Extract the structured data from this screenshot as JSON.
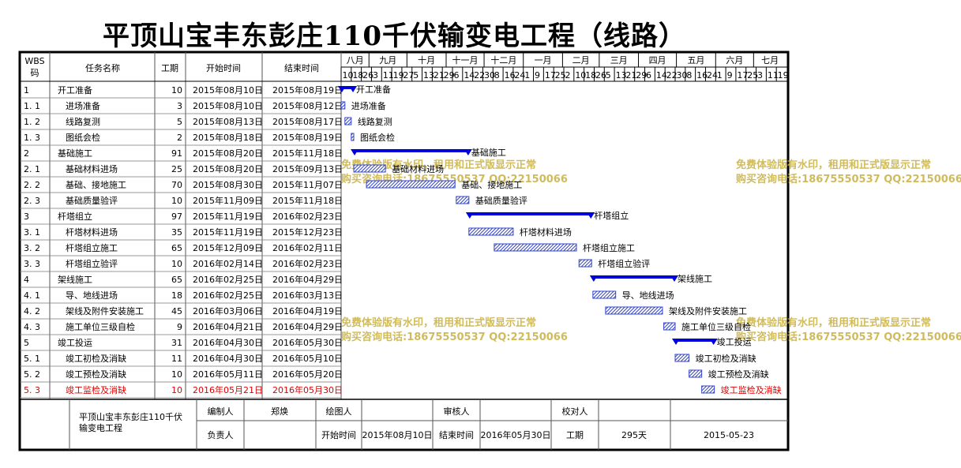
{
  "title": "平顶山宝丰东彭庄110千伏输变电工程（线路）",
  "columns": {
    "wbs": [
      "WBS",
      "码"
    ],
    "name": "任务名称",
    "duration": "工期",
    "start": "开始时间",
    "end": "结束时间"
  },
  "months": [
    "八月",
    "九月",
    "十月",
    "十一月",
    "十二月",
    "一月",
    "二月",
    "三月",
    "四月",
    "五月",
    "六月",
    "七月"
  ],
  "days": [
    "10",
    "18",
    "26",
    "3",
    "11",
    "19",
    "27",
    "5",
    "13",
    "21",
    "29",
    "6",
    "14",
    "22",
    "30",
    "8",
    "16",
    "24",
    "1",
    "9",
    "17",
    "25",
    "2",
    "10",
    "18",
    "26",
    "5",
    "13",
    "21",
    "29",
    "6",
    "14",
    "22",
    "30",
    "8",
    "16",
    "24",
    "1",
    "9",
    "17",
    "25",
    "3",
    "11",
    "19"
  ],
  "tasks": [
    {
      "wbs": "1",
      "name": "开工准备",
      "duration": 10,
      "start": "2015年08月10日",
      "end": "2015年08月19日",
      "summary": true,
      "level": 0
    },
    {
      "wbs": "1.1",
      "name": "进场准备",
      "duration": 3,
      "start": "2015年08月10日",
      "end": "2015年08月12日",
      "summary": false,
      "level": 1
    },
    {
      "wbs": "1.2",
      "name": "线路复测",
      "duration": 5,
      "start": "2015年08月13日",
      "end": "2015年08月17日",
      "summary": false,
      "level": 1
    },
    {
      "wbs": "1.3",
      "name": "图纸会检",
      "duration": 2,
      "start": "2015年08月18日",
      "end": "2015年08月19日",
      "summary": false,
      "level": 1
    },
    {
      "wbs": "2",
      "name": "基础施工",
      "duration": 91,
      "start": "2015年08月20日",
      "end": "2015年11月18日",
      "summary": true,
      "level": 0
    },
    {
      "wbs": "2.1",
      "name": "基础材料进场",
      "duration": 25,
      "start": "2015年08月20日",
      "end": "2015年09月13日",
      "summary": false,
      "level": 1
    },
    {
      "wbs": "2.2",
      "name": "基础、接地施工",
      "duration": 70,
      "start": "2015年08月30日",
      "end": "2015年11月07日",
      "summary": false,
      "level": 1
    },
    {
      "wbs": "2.3",
      "name": "基础质量验评",
      "duration": 10,
      "start": "2015年11月09日",
      "end": "2015年11月18日",
      "summary": false,
      "level": 1
    },
    {
      "wbs": "3",
      "name": "杆塔组立",
      "duration": 97,
      "start": "2015年11月19日",
      "end": "2016年02月23日",
      "summary": true,
      "level": 0
    },
    {
      "wbs": "3.1",
      "name": "杆塔材料进场",
      "duration": 35,
      "start": "2015年11月19日",
      "end": "2015年12月23日",
      "summary": false,
      "level": 1
    },
    {
      "wbs": "3.2",
      "name": "杆塔组立施工",
      "duration": 65,
      "start": "2015年12月09日",
      "end": "2016年02月11日",
      "summary": false,
      "level": 1
    },
    {
      "wbs": "3.3",
      "name": "杆塔组立验评",
      "duration": 10,
      "start": "2016年02月14日",
      "end": "2016年02月23日",
      "summary": false,
      "level": 1
    },
    {
      "wbs": "4",
      "name": "架线施工",
      "duration": 65,
      "start": "2016年02月25日",
      "end": "2016年04月29日",
      "summary": true,
      "level": 0
    },
    {
      "wbs": "4.1",
      "name": "导、地线进场",
      "duration": 18,
      "start": "2016年02月25日",
      "end": "2016年03月13日",
      "summary": false,
      "level": 1
    },
    {
      "wbs": "4.2",
      "name": "架线及附件安装施工",
      "duration": 45,
      "start": "2016年03月06日",
      "end": "2016年04月19日",
      "summary": false,
      "level": 1
    },
    {
      "wbs": "4.3",
      "name": "施工单位三级自检",
      "duration": 9,
      "start": "2016年04月21日",
      "end": "2016年04月29日",
      "summary": false,
      "level": 1
    },
    {
      "wbs": "5",
      "name": "竣工投运",
      "duration": 31,
      "start": "2016年04月30日",
      "end": "2016年05月30日",
      "summary": true,
      "level": 0
    },
    {
      "wbs": "5.1",
      "name": "竣工初检及消缺",
      "duration": 11,
      "start": "2016年04月30日",
      "end": "2016年05月10日",
      "summary": false,
      "level": 1
    },
    {
      "wbs": "5.2",
      "name": "竣工预检及消缺",
      "duration": 10,
      "start": "2016年05月11日",
      "end": "2016年05月20日",
      "summary": false,
      "level": 1
    },
    {
      "wbs": "5.3",
      "name": "竣工监检及消缺",
      "duration": 10,
      "start": "2016年05月21日",
      "end": "2016年05月30日",
      "summary": false,
      "level": 1,
      "highlight": true
    }
  ],
  "watermark": {
    "line1": "免费体验版有水印，租用和正式版显示正常",
    "line2": "购买咨询电话:18675550537 QQ:22150066"
  },
  "footer": {
    "project": "平顶山宝丰东彭庄110千伏输变电工程",
    "editor_label": "编制人",
    "editor": "郑焕",
    "drawer_label": "绘图人",
    "drawer": "",
    "reviewer_label": "审核人",
    "reviewer": "",
    "checker_label": "校对人",
    "checker": "",
    "owner_label": "负责人",
    "owner": "",
    "start_label": "开始时间",
    "start": "2015年08月10日",
    "end_label": "结束时间",
    "end": "2016年05月30日",
    "duration_label": "工期",
    "duration": "295天",
    "date": "2015-05-23"
  },
  "colors": {
    "bar": "#3344cc",
    "summary": "#0000dd",
    "highlight": "#e00000",
    "grid": "#555555"
  },
  "chart_data": {
    "type": "gantt",
    "x_unit": "date",
    "x_range": [
      "2015-08-10",
      "2016-07-27"
    ],
    "tasks": [
      {
        "name": "开工准备",
        "start": "2015-08-10",
        "end": "2015-08-19"
      },
      {
        "name": "进场准备",
        "start": "2015-08-10",
        "end": "2015-08-12"
      },
      {
        "name": "线路复测",
        "start": "2015-08-13",
        "end": "2015-08-17"
      },
      {
        "name": "图纸会检",
        "start": "2015-08-18",
        "end": "2015-08-19"
      },
      {
        "name": "基础施工",
        "start": "2015-08-20",
        "end": "2015-11-18"
      },
      {
        "name": "基础材料进场",
        "start": "2015-08-20",
        "end": "2015-09-13"
      },
      {
        "name": "基础、接地施工",
        "start": "2015-08-30",
        "end": "2015-11-07"
      },
      {
        "name": "基础质量验评",
        "start": "2015-11-09",
        "end": "2015-11-18"
      },
      {
        "name": "杆塔组立",
        "start": "2015-11-19",
        "end": "2016-02-23"
      },
      {
        "name": "杆塔材料进场",
        "start": "2015-11-19",
        "end": "2015-12-23"
      },
      {
        "name": "杆塔组立施工",
        "start": "2015-12-09",
        "end": "2016-02-11"
      },
      {
        "name": "杆塔组立验评",
        "start": "2016-02-14",
        "end": "2016-02-23"
      },
      {
        "name": "架线施工",
        "start": "2016-02-25",
        "end": "2016-04-29"
      },
      {
        "name": "导、地线进场",
        "start": "2016-02-25",
        "end": "2016-03-13"
      },
      {
        "name": "架线及附件安装施工",
        "start": "2016-03-06",
        "end": "2016-04-19"
      },
      {
        "name": "施工单位三级自检",
        "start": "2016-04-21",
        "end": "2016-04-29"
      },
      {
        "name": "竣工投运",
        "start": "2016-04-30",
        "end": "2016-05-30"
      },
      {
        "name": "竣工初检及消缺",
        "start": "2016-04-30",
        "end": "2016-05-10"
      },
      {
        "name": "竣工预检及消缺",
        "start": "2016-05-11",
        "end": "2016-05-20"
      },
      {
        "name": "竣工监检及消缺",
        "start": "2016-05-21",
        "end": "2016-05-30"
      }
    ]
  }
}
